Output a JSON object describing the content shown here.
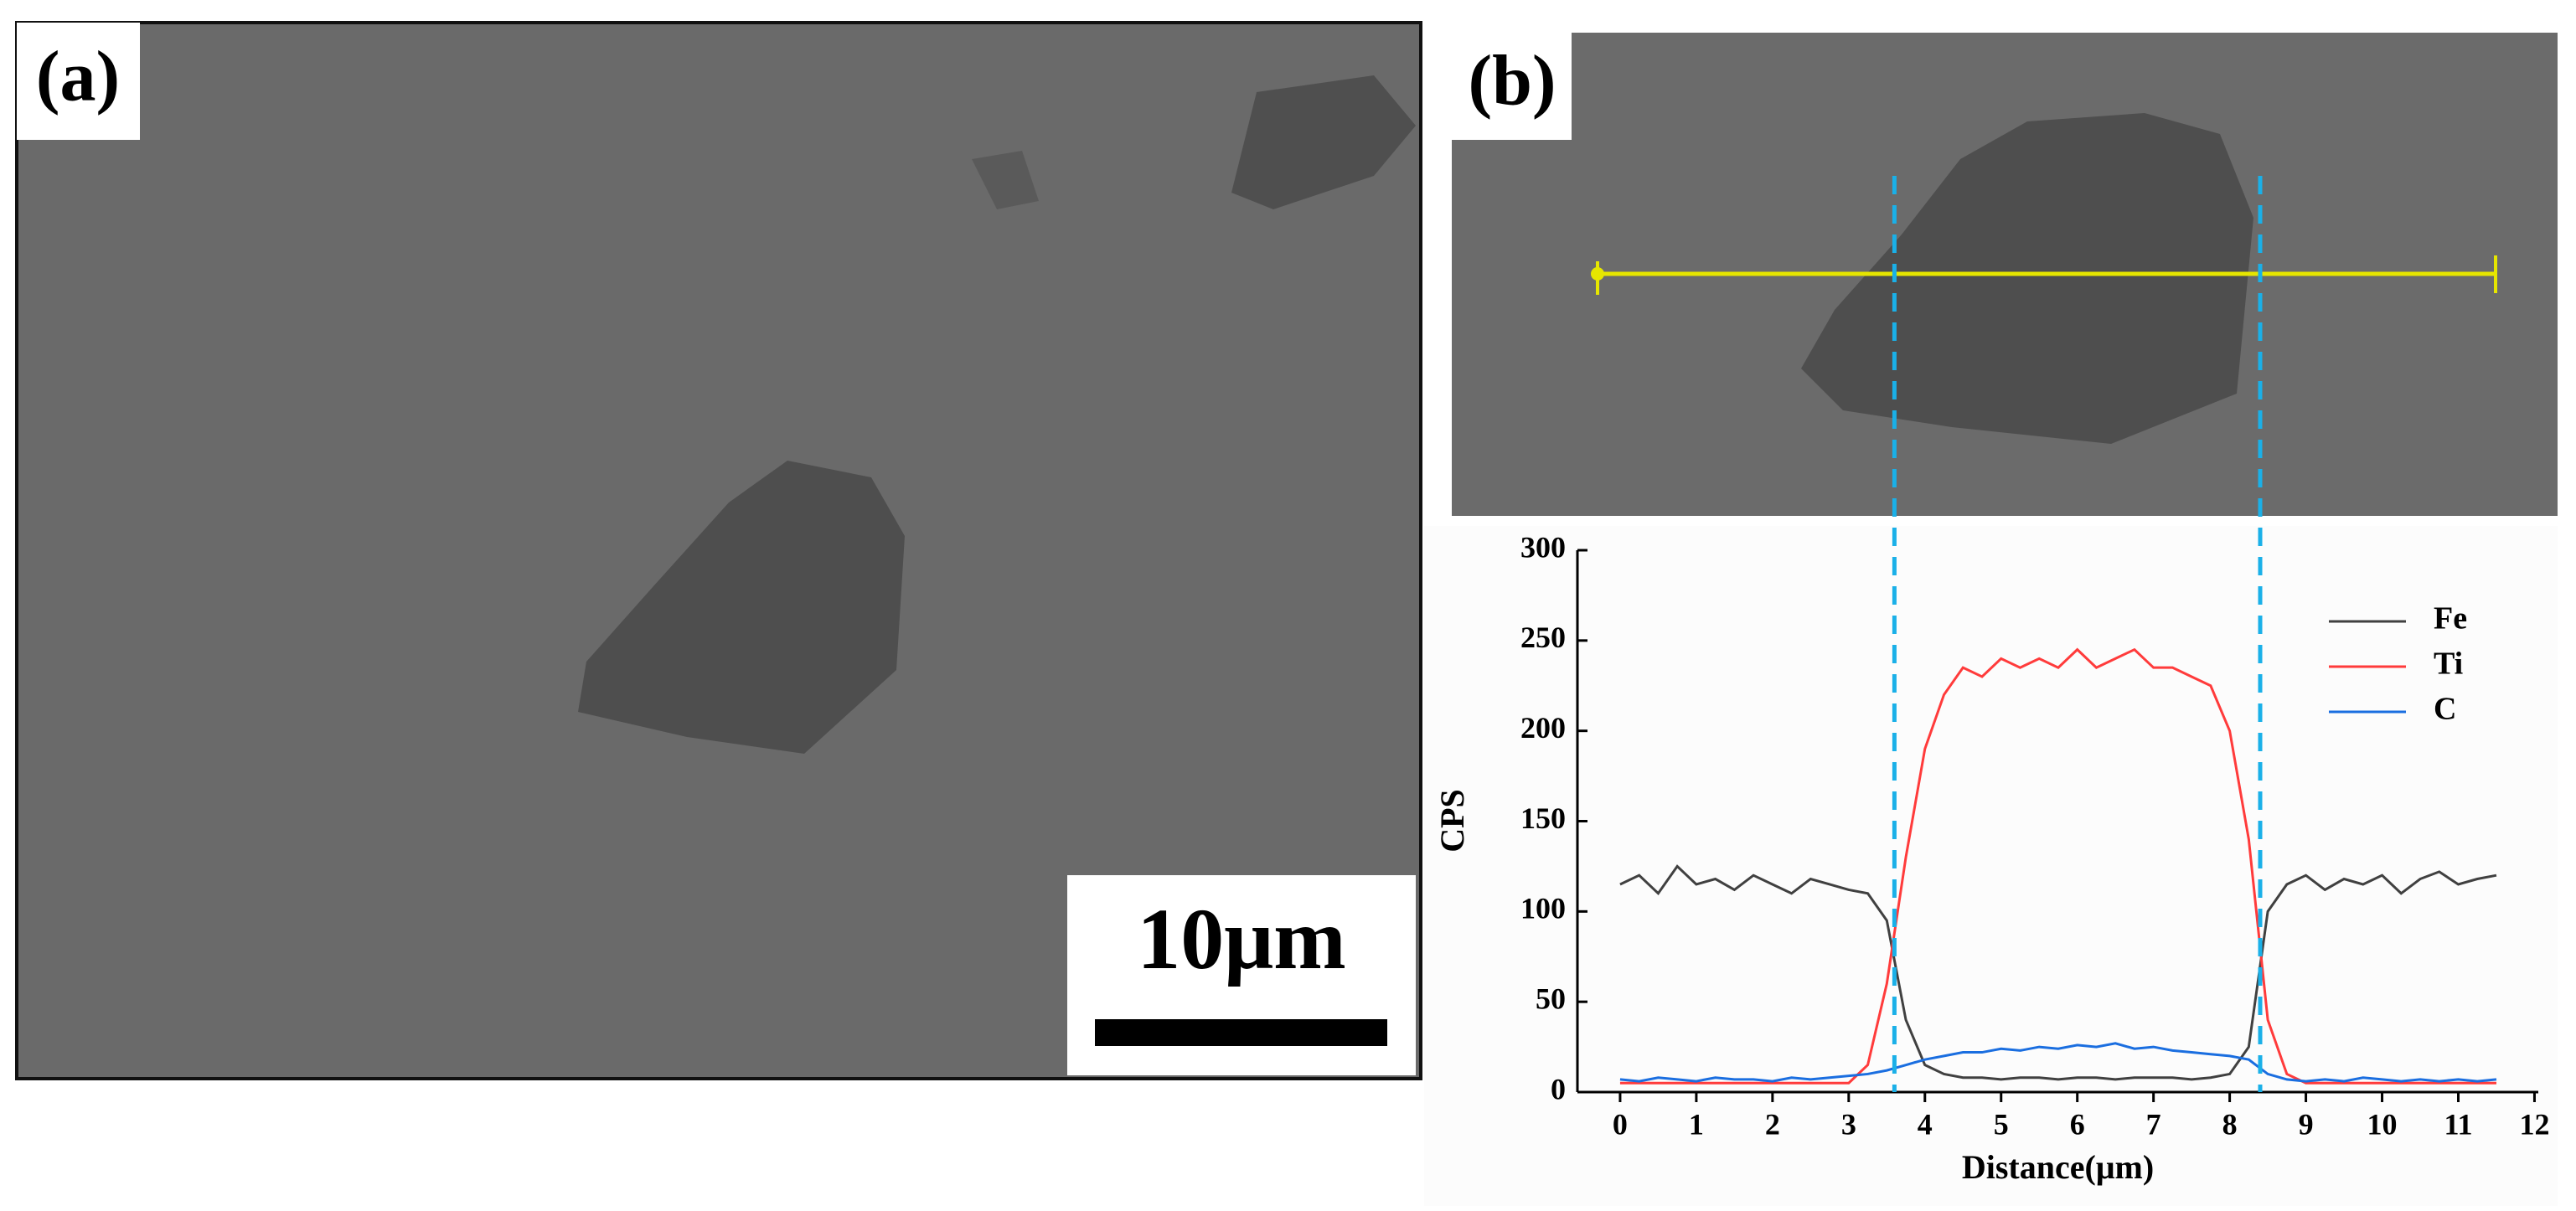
{
  "panels": {
    "a": "(a)",
    "b": "(b)"
  },
  "scale_bar": "10μm",
  "chart_data": {
    "type": "line",
    "x_label": "Distance(μm)",
    "y_label": "CPS",
    "x": [
      0,
      0.25,
      0.5,
      0.75,
      1,
      1.25,
      1.5,
      1.75,
      2,
      2.25,
      2.5,
      2.75,
      3,
      3.25,
      3.5,
      3.75,
      4,
      4.25,
      4.5,
      4.75,
      5,
      5.25,
      5.5,
      5.75,
      6,
      6.25,
      6.5,
      6.75,
      7,
      7.25,
      7.5,
      7.75,
      8,
      8.25,
      8.5,
      8.75,
      9,
      9.25,
      9.5,
      9.75,
      10,
      10.25,
      10.5,
      10.75,
      11,
      11.25,
      11.5
    ],
    "series": [
      {
        "name": "Fe",
        "color": "#404040",
        "values": [
          115,
          120,
          110,
          125,
          115,
          118,
          112,
          120,
          115,
          110,
          118,
          115,
          112,
          110,
          95,
          40,
          15,
          10,
          8,
          8,
          7,
          8,
          8,
          7,
          8,
          8,
          7,
          8,
          8,
          8,
          7,
          8,
          10,
          25,
          100,
          115,
          120,
          112,
          118,
          115,
          120,
          110,
          118,
          122,
          115,
          118,
          120
        ]
      },
      {
        "name": "Ti",
        "color": "#ff3b3b",
        "values": [
          5,
          5,
          5,
          5,
          5,
          5,
          5,
          5,
          5,
          5,
          5,
          5,
          5,
          15,
          60,
          130,
          190,
          220,
          235,
          230,
          240,
          235,
          240,
          235,
          245,
          235,
          240,
          245,
          235,
          235,
          230,
          225,
          200,
          140,
          40,
          10,
          5,
          5,
          5,
          5,
          5,
          5,
          5,
          5,
          5,
          5,
          5
        ]
      },
      {
        "name": "C",
        "color": "#1a6ee0",
        "values": [
          7,
          6,
          8,
          7,
          6,
          8,
          7,
          7,
          6,
          8,
          7,
          8,
          9,
          10,
          12,
          15,
          18,
          20,
          22,
          22,
          24,
          23,
          25,
          24,
          26,
          25,
          27,
          24,
          25,
          23,
          22,
          21,
          20,
          18,
          10,
          7,
          6,
          7,
          6,
          8,
          7,
          6,
          7,
          6,
          7,
          6,
          7
        ]
      }
    ],
    "vlines": [
      3.6,
      8.4
    ],
    "vline_color": "#1ab0e8",
    "xlim": [
      -0.56,
      12.05
    ],
    "xticks": [
      0,
      1,
      2,
      3,
      4,
      5,
      6,
      7,
      8,
      9,
      10,
      11,
      12
    ],
    "ylim": [
      0,
      300
    ],
    "yticks": [
      0,
      50,
      100,
      150,
      200,
      250,
      300
    ],
    "legend": "upper-right"
  }
}
